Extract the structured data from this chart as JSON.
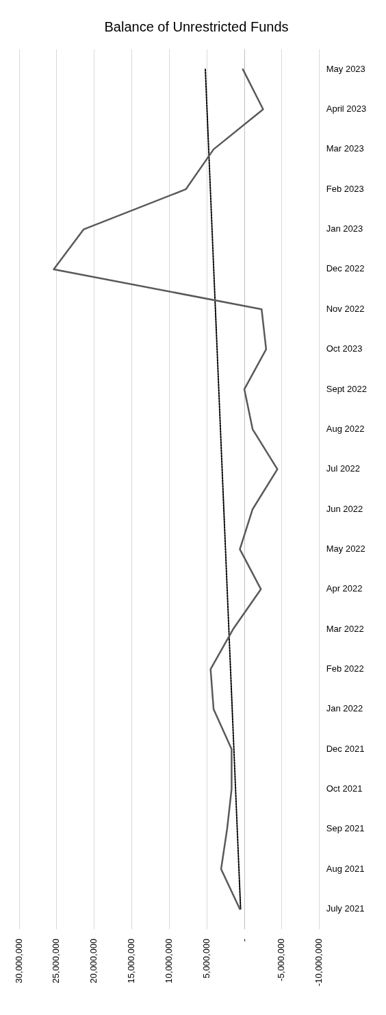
{
  "chart_data": {
    "type": "line",
    "title": "Balance of Unrestricted Funds",
    "orientation": "horizontal",
    "categories": [
      "May 2023",
      "April 2023",
      "Mar 2023",
      "Feb 2023",
      "Jan 2023",
      "Dec 2022",
      "Nov 2022",
      "Oct 2023",
      "Sept 2022",
      "Aug 2022",
      "Jul 2022",
      "Jun 2022",
      "May 2022",
      "Apr 2022",
      "Mar 2022",
      "Feb 2022",
      "Jan 2022",
      "Dec 2021",
      "Oct 2021",
      "Sep 2021",
      "Aug 2021",
      "July 2021"
    ],
    "series": [
      {
        "color": "#595959",
        "values": [
          200000,
          -2500000,
          4100000,
          7800000,
          21400000,
          25400000,
          -2300000,
          -2900000,
          0,
          -1100000,
          -4400000,
          -1100000,
          600000,
          -2200000,
          1500000,
          4500000,
          4100000,
          1700000,
          1700000,
          2300000,
          3100000,
          600000
        ]
      },
      {
        "color": "#000000",
        "line_style": "dotted",
        "x": [
          "May 2023",
          "July 2021"
        ],
        "values": [
          5200000,
          500000
        ]
      }
    ],
    "xlim": [
      30000000,
      -10000000
    ],
    "xticks": [
      {
        "value": 30000000,
        "label": "30,000,000"
      },
      {
        "value": 25000000,
        "label": "25,000,000"
      },
      {
        "value": 20000000,
        "label": "20,000,000"
      },
      {
        "value": 15000000,
        "label": "15,000,000"
      },
      {
        "value": 10000000,
        "label": "10,000,000"
      },
      {
        "value": 5000000,
        "label": "5,000,000"
      },
      {
        "value": 0,
        "label": "-"
      },
      {
        "value": -5000000,
        "label": "-5,000,000"
      },
      {
        "value": -10000000,
        "label": "-10,000,000"
      }
    ],
    "grid": "x",
    "legend": false,
    "marker": "none",
    "line_style": "solid"
  }
}
